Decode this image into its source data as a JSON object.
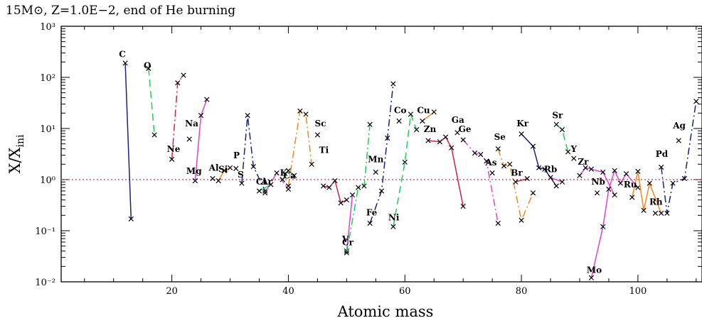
{
  "chart_data": {
    "type": "line",
    "title": "15M⊙, Z=1.0E−2, end of He burning",
    "xlabel": "Atomic mass",
    "ylabel": "X/X",
    "ylabel_sub": "ini",
    "y_scale": "log",
    "xlim": [
      1,
      111
    ],
    "ylim": [
      0.01,
      1000
    ],
    "x_ticks": [
      20,
      40,
      60,
      80,
      100
    ],
    "y_ticks": [
      {
        "value": 0.01,
        "label": "10⁻²"
      },
      {
        "value": 0.1,
        "label": "10⁻¹"
      },
      {
        "value": 1,
        "label": "10⁰"
      },
      {
        "value": 10,
        "label": "10¹"
      },
      {
        "value": 100,
        "label": "10²"
      },
      {
        "value": 1000,
        "label": "10³"
      }
    ],
    "reference_line": {
      "y": 1,
      "color": "#cc3355",
      "style": "dotted"
    },
    "grid": false,
    "series": [
      {
        "name": "C",
        "color": "#1a237e",
        "dash": "solid",
        "label_at": [
          11.5,
          250
        ],
        "points": [
          [
            12,
            190
          ],
          [
            13,
            0.17
          ]
        ]
      },
      {
        "name": "O",
        "color": "#22cc55",
        "dash": "10,6",
        "label_at": [
          15.8,
          150
        ],
        "points": [
          [
            16,
            150
          ],
          [
            17,
            7.5
          ]
        ]
      },
      {
        "name": "Ne",
        "color": "#cc2244",
        "dash": "10,4,2,4",
        "label_at": [
          20.3,
          3.5
        ],
        "points": [
          [
            20,
            2.5
          ],
          [
            21,
            78
          ],
          [
            22,
            110
          ]
        ]
      },
      {
        "name": "Na",
        "color": "#dd44cc",
        "dash": "solid",
        "label_at": [
          23.4,
          11
        ],
        "points": [
          [
            23,
            6.2
          ]
        ]
      },
      {
        "name": "Mg",
        "color": "#dd44cc",
        "dash": "solid",
        "label_at": [
          23.8,
          1.3
        ],
        "points": [
          [
            24,
            0.95
          ],
          [
            25,
            18
          ],
          [
            26,
            37
          ]
        ]
      },
      {
        "name": "Al",
        "color": "#222222",
        "dash": "solid",
        "label_at": [
          27.2,
          1.5
        ],
        "points": [
          [
            27,
            1.05
          ]
        ]
      },
      {
        "name": "Si",
        "color": "#ee8822",
        "dash": "solid",
        "label_at": [
          28.8,
          1.4
        ],
        "points": [
          [
            28,
            0.95
          ],
          [
            29,
            1.5
          ],
          [
            30,
            1.7
          ]
        ]
      },
      {
        "name": "P",
        "color": "#222222",
        "dash": "solid",
        "label_at": [
          31.1,
          2.6
        ],
        "points": [
          [
            31,
            1.65
          ]
        ]
      },
      {
        "name": "S",
        "color": "#1a237e",
        "dash": "10,4,2,4",
        "label_at": [
          31.8,
          1.1
        ],
        "points": [
          [
            32,
            0.85
          ],
          [
            33,
            18
          ],
          [
            34,
            1.8
          ],
          [
            36,
            0.6
          ]
        ]
      },
      {
        "name": "Cl",
        "color": "#22cc55",
        "dash": "solid",
        "label_at": [
          35.3,
          0.8
        ],
        "points": [
          [
            35,
            0.6
          ],
          [
            37,
            0.8
          ]
        ]
      },
      {
        "name": "Ar",
        "color": "#dd44cc",
        "dash": "10,4,2,4",
        "label_at": [
          36.3,
          0.8
        ],
        "points": [
          [
            36,
            0.55
          ],
          [
            38,
            1.35
          ],
          [
            40,
            0.65
          ]
        ]
      },
      {
        "name": "K",
        "color": "#22cc55",
        "dash": "solid",
        "label_at": [
          39.2,
          1.2
        ],
        "points": [
          [
            39,
            1.0
          ],
          [
            40,
            1.5
          ],
          [
            41,
            1.2
          ]
        ]
      },
      {
        "name": "Ca",
        "color": "#ee8822",
        "dash": "10,4,2,4",
        "label_at": [
          40.2,
          1.05
        ],
        "points": [
          [
            40,
            0.75
          ],
          [
            42,
            22
          ],
          [
            43,
            19
          ],
          [
            44,
            2.0
          ]
        ]
      },
      {
        "name": "Sc",
        "color": "#cc2244",
        "dash": "10,4,2,4",
        "label_at": [
          45.5,
          11
        ],
        "points": [
          [
            45,
            7.5
          ]
        ]
      },
      {
        "name": "Ti",
        "color": "#cc2244",
        "dash": "solid",
        "label_at": [
          46.1,
          3.3
        ],
        "points": [
          [
            46,
            0.75
          ],
          [
            47,
            0.7
          ],
          [
            48,
            0.95
          ],
          [
            49,
            0.35
          ],
          [
            50,
            0.4
          ]
        ]
      },
      {
        "name": "V",
        "color": "#dd44cc",
        "dash": "solid",
        "label_at": [
          49.8,
          0.06
        ],
        "points": [
          [
            50,
            0.04
          ],
          [
            51,
            0.5
          ]
        ]
      },
      {
        "name": "Cr",
        "color": "#22cc55",
        "dash": "10,4,2,4",
        "label_at": [
          50.2,
          0.052
        ],
        "points": [
          [
            50,
            0.037
          ],
          [
            52,
            0.7
          ],
          [
            53,
            0.75
          ],
          [
            54,
            12
          ]
        ]
      },
      {
        "name": "Mn",
        "color": "#222222",
        "dash": "solid",
        "label_at": [
          55.0,
          2.2
        ],
        "points": [
          [
            55,
            1.4
          ]
        ]
      },
      {
        "name": "Fe",
        "color": "#1a237e",
        "dash": "10,4,2,4",
        "label_at": [
          54.3,
          0.2
        ],
        "points": [
          [
            54,
            0.14
          ],
          [
            56,
            0.6
          ],
          [
            57,
            6.5
          ],
          [
            58,
            75
          ]
        ]
      },
      {
        "name": "Ni",
        "color": "#22cc55",
        "dash": "10,6",
        "label_at": [
          58.1,
          0.16
        ],
        "points": [
          [
            58,
            0.12
          ],
          [
            60,
            2.2
          ],
          [
            61,
            19
          ],
          [
            62,
            9.5
          ]
        ]
      },
      {
        "name": "Co",
        "color": "#222222",
        "dash": "solid",
        "label_at": [
          59.2,
          20
        ],
        "points": [
          [
            59,
            14
          ]
        ]
      },
      {
        "name": "Cu",
        "color": "#ee8822",
        "dash": "solid",
        "label_at": [
          63.2,
          20
        ],
        "points": [
          [
            63,
            14
          ],
          [
            65,
            21
          ]
        ]
      },
      {
        "name": "Zn",
        "color": "#cc2244",
        "dash": "solid",
        "label_at": [
          64.3,
          8.5
        ],
        "points": [
          [
            64,
            5.8
          ],
          [
            66,
            5.5
          ],
          [
            67,
            6.8
          ],
          [
            68,
            4.2
          ],
          [
            70,
            0.3
          ]
        ]
      },
      {
        "name": "Ga",
        "color": "#222222",
        "dash": "solid",
        "label_at": [
          69.1,
          13
        ],
        "points": [
          [
            69,
            8.3
          ]
        ]
      },
      {
        "name": "Ge",
        "color": "#dd44cc",
        "dash": "10,4,2,4",
        "label_at": [
          70.3,
          8.5
        ],
        "points": [
          [
            70,
            6.0
          ],
          [
            72,
            3.3
          ],
          [
            73,
            3.1
          ],
          [
            74,
            2.3
          ],
          [
            76,
            0.14
          ]
        ]
      },
      {
        "name": "As",
        "color": "#222222",
        "dash": "solid",
        "label_at": [
          74.8,
          1.9
        ],
        "points": [
          [
            75,
            1.35
          ]
        ]
      },
      {
        "name": "Se",
        "color": "#ee8822",
        "dash": "10,4,2,4",
        "label_at": [
          76.3,
          6.0
        ],
        "points": [
          [
            76,
            4.0
          ],
          [
            77,
            1.85
          ],
          [
            78,
            2.0
          ],
          [
            80,
            0.16
          ],
          [
            82,
            0.55
          ]
        ]
      },
      {
        "name": "Br",
        "color": "#cc2244",
        "dash": "solid",
        "label_at": [
          79.2,
          1.2
        ],
        "points": [
          [
            79,
            0.9
          ],
          [
            81,
            1.05
          ]
        ]
      },
      {
        "name": "Kr",
        "color": "#1a237e",
        "dash": "solid",
        "label_at": [
          80.2,
          11
        ],
        "points": [
          [
            80,
            7.8
          ],
          [
            82,
            4.5
          ],
          [
            83,
            1.7
          ],
          [
            84,
            1.6
          ],
          [
            86,
            0.75
          ]
        ]
      },
      {
        "name": "Rb",
        "color": "#dd44cc",
        "dash": "solid",
        "label_at": [
          85.0,
          1.4
        ],
        "points": [
          [
            85,
            1.1
          ],
          [
            87,
            0.9
          ]
        ]
      },
      {
        "name": "Sr",
        "color": "#22cc55",
        "dash": "10,6",
        "label_at": [
          86.2,
          16
        ],
        "points": [
          [
            86,
            12
          ],
          [
            87,
            9.5
          ],
          [
            88,
            3.5
          ]
        ]
      },
      {
        "name": "Y",
        "color": "#222222",
        "dash": "solid",
        "label_at": [
          89.0,
          3.5
        ],
        "points": [
          [
            89,
            2.6
          ]
        ]
      },
      {
        "name": "Zr",
        "color": "#dd44cc",
        "dash": "solid",
        "label_at": [
          90.6,
          1.95
        ],
        "points": [
          [
            90,
            1.2
          ],
          [
            91,
            1.7
          ],
          [
            92,
            1.6
          ],
          [
            94,
            1.4
          ],
          [
            96,
            0.5
          ]
        ]
      },
      {
        "name": "Nb",
        "color": "#222222",
        "dash": "solid",
        "label_at": [
          93.2,
          0.8
        ],
        "points": [
          [
            93,
            0.55
          ]
        ]
      },
      {
        "name": "Mo",
        "color": "#dd44cc",
        "dash": "solid",
        "label_at": [
          92.5,
          0.015
        ],
        "points": [
          [
            92,
            0.012
          ],
          [
            94,
            0.12
          ],
          [
            95,
            0.65
          ],
          [
            96,
            1.5
          ],
          [
            97,
            0.85
          ],
          [
            98,
            1.3
          ],
          [
            100,
            0.7
          ]
        ]
      },
      {
        "name": "Ru",
        "color": "#ee8822",
        "dash": "solid",
        "label_at": [
          98.7,
          0.7
        ],
        "points": [
          [
            99,
            0.45
          ],
          [
            100,
            1.45
          ],
          [
            101,
            0.25
          ],
          [
            102,
            0.85
          ],
          [
            104,
            0.22
          ]
        ]
      },
      {
        "name": "Rh",
        "color": "#222222",
        "dash": "solid",
        "label_at": [
          103.1,
          0.32
        ],
        "points": [
          [
            103,
            0.22
          ]
        ]
      },
      {
        "name": "Pd",
        "color": "#1a237e",
        "dash": "10,4,2,4",
        "label_at": [
          104.1,
          2.8
        ],
        "points": [
          [
            104,
            1.75
          ],
          [
            105,
            0.22
          ],
          [
            106,
            0.85
          ],
          [
            108,
            1.05
          ],
          [
            110,
            34
          ]
        ]
      },
      {
        "name": "Ag",
        "color": "#222222",
        "dash": "solid",
        "label_at": [
          107.1,
          10
        ],
        "points": [
          [
            107,
            5.8
          ]
        ]
      }
    ]
  }
}
